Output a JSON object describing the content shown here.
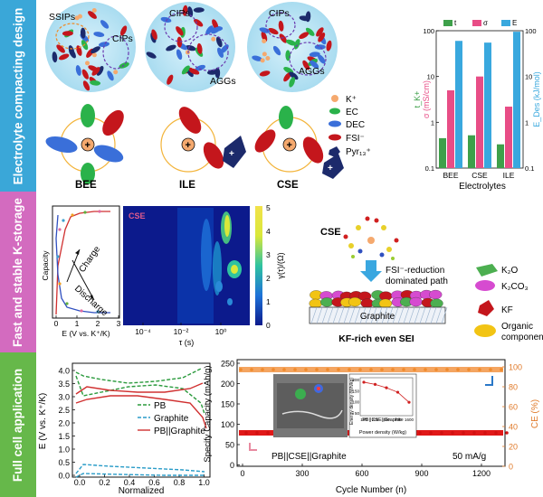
{
  "bands": {
    "b1": {
      "label": "Electrolyte compacting design",
      "color": "#3aa7d8"
    },
    "b2": {
      "label": "Fast and stable K-storage",
      "color": "#d36bbf"
    },
    "b3": {
      "label": "Full cell application",
      "color": "#66b84a"
    }
  },
  "panel1": {
    "circle_labels": {
      "ssips": "SSIPs",
      "cips1": "CIPs",
      "cips2": "CIPs",
      "aggs1": "AGGs",
      "cips3": "CIPs",
      "aggs2": "AGGs"
    },
    "legend": [
      "K⁺",
      "EC",
      "DEC",
      "FSI⁻",
      "Pyr₁₃⁺"
    ],
    "names": [
      "BEE",
      "ILE",
      "CSE"
    ],
    "colors": {
      "k": "#f5a96e",
      "ec": "#2ab24a",
      "dec": "#3a6fd9",
      "fsi": "#c4161c",
      "pyr": "#1c2a6b"
    }
  },
  "chart_data": [
    {
      "type": "bar",
      "categories": [
        "BEE",
        "CSE",
        "ILE"
      ],
      "series": [
        {
          "name": "t_K+",
          "values": [
            0.45,
            0.52,
            0.33
          ],
          "color": "#3ea04a"
        },
        {
          "name": "σ",
          "values": [
            5.0,
            10.0,
            2.2
          ],
          "color": "#e84d86"
        },
        {
          "name": "E_Des",
          "values": [
            60,
            55,
            95
          ],
          "color": "#39a8de"
        }
      ],
      "xlabel": "Electrolytes",
      "ylabel_left": "σ (mS/cm)",
      "ylabel_left2": "t_K+",
      "ylabel_right": "E_Des (kJ/mol)",
      "ylim": [
        0.1,
        100
      ],
      "yscale": "log",
      "yticks": [
        "100",
        "10",
        "1",
        "0.1"
      ],
      "legend": [
        "t",
        "σ",
        "E"
      ]
    },
    {
      "type": "line",
      "xlabel": "E (V vs. K⁺/K)",
      "ylabel": "Capacity",
      "xticks": [
        "0",
        "1",
        "2",
        "3"
      ],
      "annotations": [
        "Charge",
        "Discharge"
      ]
    },
    {
      "type": "heatmap",
      "title": "CSE",
      "xlabel": "τ (s)",
      "xticks": [
        "10⁻⁴",
        "10⁻²",
        "10⁰"
      ],
      "colorbar_label": "γ(τ)/(Ω)",
      "colorbar_ticks": [
        "5",
        "4",
        "3",
        "2",
        "1",
        "0"
      ]
    },
    {
      "type": "line",
      "xlabel": "Normalized",
      "ylabel": "E (V vs. K⁺/K)",
      "xticks": [
        "0.0",
        "0.2",
        "0.4",
        "0.6",
        "0.8",
        "1.0"
      ],
      "yticks": [
        "4.0",
        "3.5",
        "3.0",
        "2.5",
        "2.0",
        "1.5",
        "1.0",
        "0.5",
        "0.0"
      ],
      "series": [
        {
          "name": "PB"
        },
        {
          "name": "Graphite"
        },
        {
          "name": "PB||Graphite"
        }
      ]
    },
    {
      "type": "scatter",
      "xlabel": "Cycle Number (n)",
      "ylabel_left": "Specify Capacity (mAh/g)",
      "ylabel_right": "CE (%)",
      "xticks": [
        "0",
        "300",
        "600",
        "900",
        "1200"
      ],
      "yticks_left": [
        "250",
        "200",
        "150",
        "100",
        "50",
        "0"
      ],
      "yticks_right": [
        "100",
        "80",
        "60",
        "40",
        "20",
        "0"
      ],
      "series": [
        {
          "name": "Capacity",
          "approx": "~60 mAh/g"
        },
        {
          "name": "CE",
          "approx": "~100 %"
        }
      ],
      "annotations": [
        "PB||CSE||Graphite",
        "50 mA/g"
      ],
      "inset": {
        "xlabel": "Power density (W/kg)",
        "ylabel": "Energy density (Wh/kg)",
        "label": "PB||CSE||Graphite",
        "xticks": [
          "100",
          "200",
          "400",
          "800",
          "1600"
        ],
        "yticks": [
          "200",
          "150",
          "100",
          "50"
        ],
        "values": [
          [
            100,
            190
          ],
          [
            200,
            180
          ],
          [
            400,
            165
          ],
          [
            800,
            145
          ],
          [
            1600,
            100
          ]
        ]
      }
    }
  ],
  "panel2": {
    "cse": "CSE",
    "arrow_text": "FSI⁻-reduction\ndominated path",
    "arrow_line1": "FSI⁻-reduction",
    "arrow_line2": "dominated path",
    "legend": [
      "K₂O",
      "K₂CO₃",
      "KF",
      "Organic",
      "components"
    ],
    "graphite": "Graphite",
    "sei": "KF-rich even SEI"
  }
}
